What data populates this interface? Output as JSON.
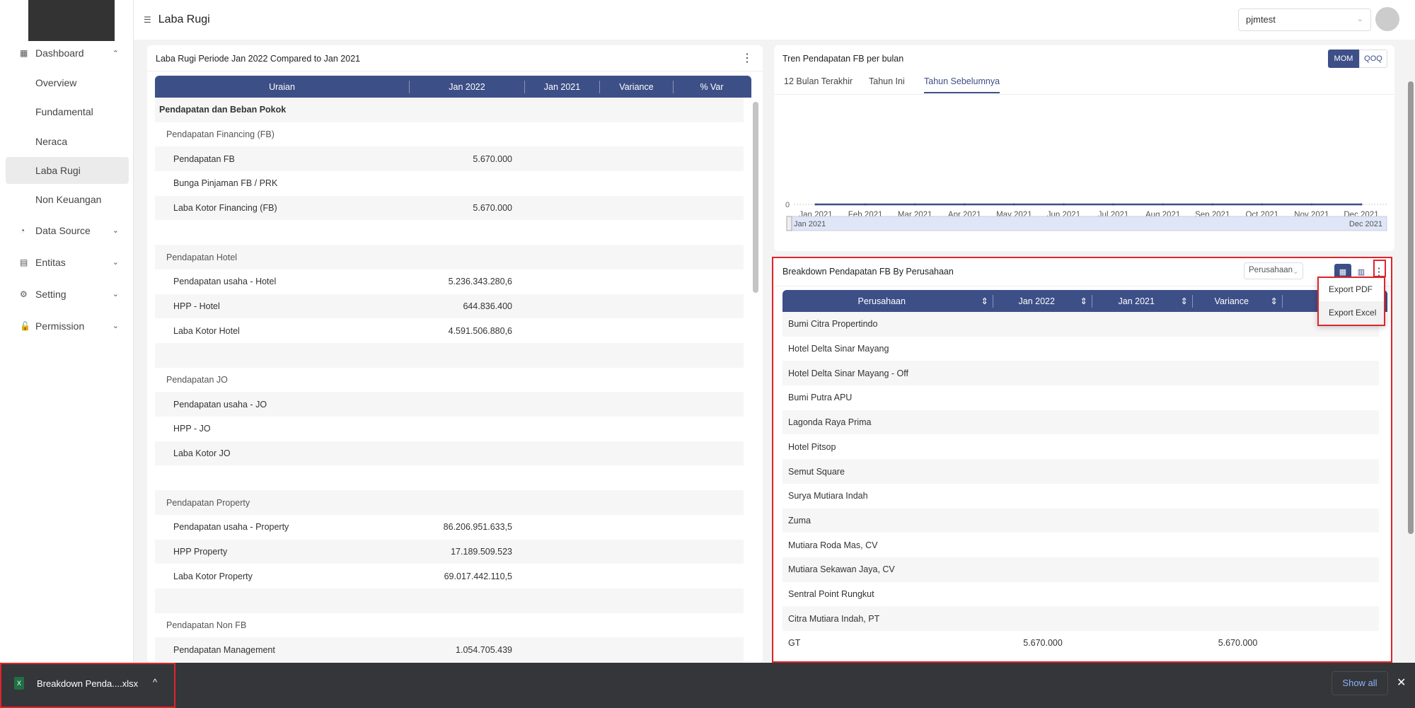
{
  "header": {
    "title": "Laba Rugi",
    "user": "pjmtest"
  },
  "sidebar": {
    "items": [
      {
        "label": "Dashboard",
        "icon": "grid-icon",
        "expanded": true,
        "children": [
          "Overview",
          "Fundamental",
          "Neraca",
          "Laba Rugi",
          "Non Keuangan"
        ],
        "active": "Laba Rugi"
      },
      {
        "label": "Data Source",
        "icon": "pie-chart-icon"
      },
      {
        "label": "Entitas",
        "icon": "table-icon"
      },
      {
        "label": "Setting",
        "icon": "gear-icon"
      },
      {
        "label": "Permission",
        "icon": "lock-icon"
      }
    ]
  },
  "labaRugi": {
    "title": "Laba Rugi Periode Jan 2022 Compared to Jan 2021",
    "columns": [
      "Uraian",
      "Jan 2022",
      "Jan 2021",
      "Variance",
      "% Var"
    ],
    "rows": [
      {
        "label": "Pendapatan dan Beban Pokok",
        "level": 0,
        "bold": true,
        "jan2022": ""
      },
      {
        "label": "Pendapatan Financing (FB)",
        "level": 1,
        "jan2022": ""
      },
      {
        "label": "Pendapatan FB",
        "level": 2,
        "jan2022": "5.670.000"
      },
      {
        "label": "Bunga Pinjaman FB / PRK",
        "level": 2,
        "jan2022": ""
      },
      {
        "label": "Laba Kotor Financing (FB)",
        "level": 2,
        "jan2022": "5.670.000"
      },
      {
        "label": "",
        "level": 0,
        "jan2022": ""
      },
      {
        "label": "Pendapatan Hotel",
        "level": 1,
        "jan2022": ""
      },
      {
        "label": "Pendapatan usaha - Hotel",
        "level": 2,
        "jan2022": "5.236.343.280,6"
      },
      {
        "label": "HPP - Hotel",
        "level": 2,
        "jan2022": "644.836.400"
      },
      {
        "label": "Laba Kotor Hotel",
        "level": 2,
        "jan2022": "4.591.506.880,6"
      },
      {
        "label": "",
        "level": 0,
        "jan2022": ""
      },
      {
        "label": "Pendapatan JO",
        "level": 1,
        "jan2022": ""
      },
      {
        "label": "Pendapatan usaha - JO",
        "level": 2,
        "jan2022": ""
      },
      {
        "label": "HPP - JO",
        "level": 2,
        "jan2022": ""
      },
      {
        "label": "Laba Kotor JO",
        "level": 2,
        "jan2022": ""
      },
      {
        "label": "",
        "level": 0,
        "jan2022": ""
      },
      {
        "label": "Pendapatan Property",
        "level": 1,
        "jan2022": ""
      },
      {
        "label": "Pendapatan usaha - Property",
        "level": 2,
        "jan2022": "86.206.951.633,5"
      },
      {
        "label": "HPP Property",
        "level": 2,
        "jan2022": "17.189.509.523"
      },
      {
        "label": "Laba Kotor Property",
        "level": 2,
        "jan2022": "69.017.442.110,5"
      },
      {
        "label": "",
        "level": 0,
        "jan2022": ""
      },
      {
        "label": "Pendapatan Non FB",
        "level": 1,
        "jan2022": ""
      },
      {
        "label": "Pendapatan Management",
        "level": 2,
        "jan2022": "1.054.705.439"
      }
    ]
  },
  "tren": {
    "title": "Tren Pendapatan FB per bulan",
    "toggle": [
      "MOM",
      "QOQ"
    ],
    "toggle_active": "MOM",
    "tabs": [
      "12 Bulan Terakhir",
      "Tahun Ini",
      "Tahun Sebelumnya"
    ],
    "active_tab": "Tahun Sebelumnya",
    "slider": {
      "start": "Jan 2021",
      "end": "Dec 2021"
    }
  },
  "chart_data": {
    "type": "line",
    "categories": [
      "Jan 2021",
      "Feb 2021",
      "Mar 2021",
      "Apr 2021",
      "May 2021",
      "Jun 2021",
      "Jul 2021",
      "Aug 2021",
      "Sep 2021",
      "Oct 2021",
      "Nov 2021",
      "Dec 2021"
    ],
    "values": [
      0,
      0,
      0,
      0,
      0,
      0,
      0,
      0,
      0,
      0,
      0,
      0
    ],
    "yticks": [
      "0"
    ],
    "color": "#3d4f87",
    "grid": false
  },
  "breakdown": {
    "title": "Breakdown Pendapatan FB By Perusahaan",
    "select": "Perusahaan",
    "columns": [
      "Perusahaan",
      "Jan 2022",
      "Jan 2021",
      "Variance"
    ],
    "menu": [
      "Export PDF",
      "Export Excel"
    ],
    "rows": [
      {
        "name": "Bumi Citra Propertindo"
      },
      {
        "name": "Hotel Delta Sinar Mayang"
      },
      {
        "name": "Hotel Delta Sinar Mayang - Off"
      },
      {
        "name": "Bumi Putra APU"
      },
      {
        "name": "Lagonda Raya Prima"
      },
      {
        "name": "Hotel Pitsop"
      },
      {
        "name": "Semut Square"
      },
      {
        "name": "Surya Mutiara Indah"
      },
      {
        "name": "Zuma"
      },
      {
        "name": "Mutiara Roda Mas, CV"
      },
      {
        "name": "Mutiara Sekawan Jaya, CV"
      },
      {
        "name": "Sentral Point Rungkut"
      },
      {
        "name": "Citra Mutiara Indah, PT"
      },
      {
        "name": "GT",
        "jan2022": "5.670.000",
        "variance": "5.670.000"
      }
    ]
  },
  "download": {
    "file": "Breakdown Penda....xlsx",
    "show_all": "Show all"
  },
  "colors": {
    "primary": "#3d4f87",
    "highlight": "#e0242c"
  }
}
